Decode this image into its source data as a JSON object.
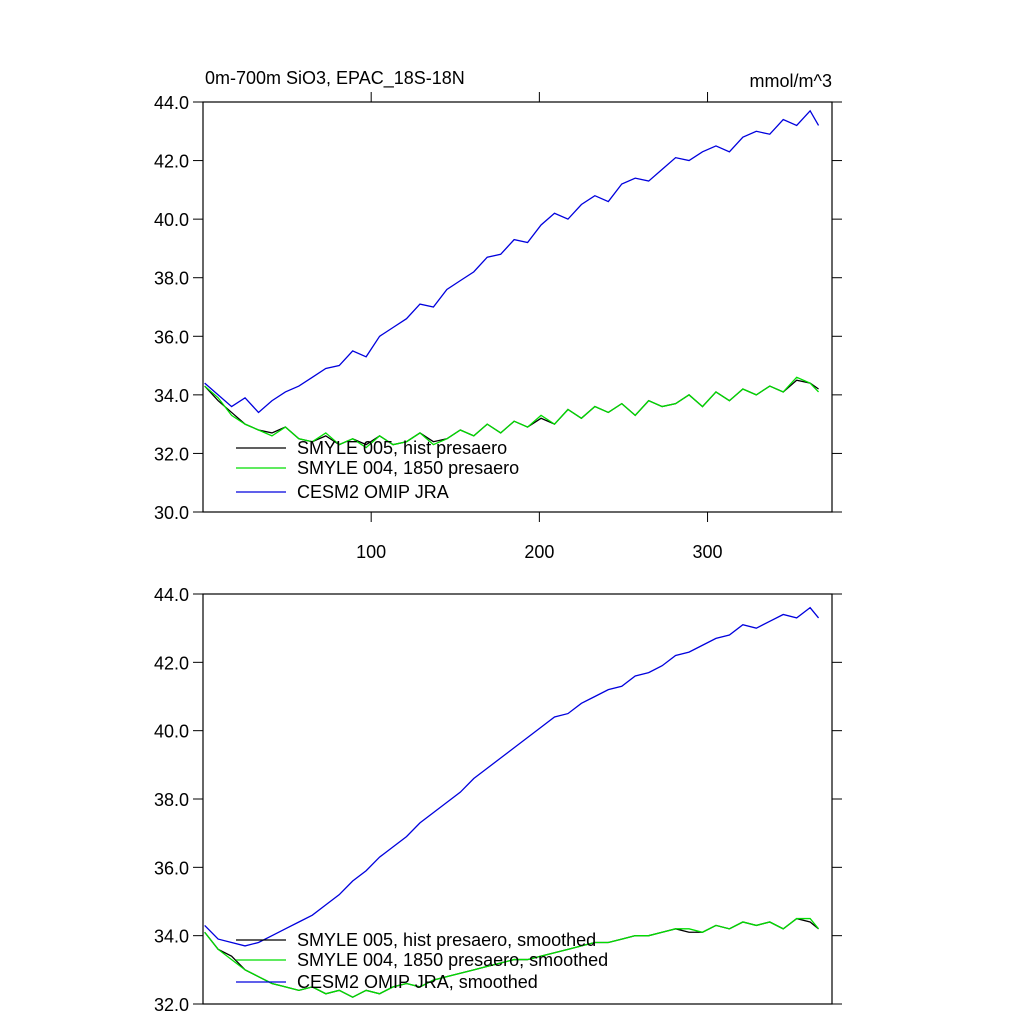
{
  "chart_data": [
    {
      "type": "line",
      "title": "0m-700m SiO3, EPAC_18S-18N",
      "units": "mmol/m^3",
      "x": [
        1,
        9,
        17,
        25,
        33,
        41,
        49,
        57,
        65,
        73,
        81,
        89,
        97,
        105,
        113,
        121,
        129,
        137,
        145,
        153,
        161,
        169,
        177,
        185,
        193,
        201,
        209,
        217,
        225,
        233,
        241,
        249,
        257,
        265,
        273,
        281,
        289,
        297,
        305,
        313,
        321,
        329,
        337,
        345,
        353,
        361,
        366
      ],
      "xlim": [
        0,
        374
      ],
      "xticks": [
        100,
        200,
        300
      ],
      "ylim": [
        30,
        44
      ],
      "yticks": [
        {
          "value": 30,
          "label": "30.0"
        },
        {
          "value": 32,
          "label": "32.0"
        },
        {
          "value": 34,
          "label": "34.0"
        },
        {
          "value": 36,
          "label": "36.0"
        },
        {
          "value": 38,
          "label": "38.0"
        },
        {
          "value": 40,
          "label": "40.0"
        },
        {
          "value": 42,
          "label": "42.0"
        },
        {
          "value": 44,
          "label": "44.0"
        }
      ],
      "series": [
        {
          "name": "SMYLE 005, hist presaero",
          "color": "#000000",
          "values": [
            34.3,
            33.8,
            33.4,
            33.0,
            32.8,
            32.7,
            32.9,
            32.5,
            32.4,
            32.6,
            32.3,
            32.5,
            32.3,
            32.6,
            32.3,
            32.4,
            32.7,
            32.4,
            32.5,
            32.8,
            32.6,
            33.0,
            32.7,
            33.1,
            32.9,
            33.2,
            33.0,
            33.5,
            33.2,
            33.6,
            33.4,
            33.7,
            33.3,
            33.8,
            33.6,
            33.7,
            34.0,
            33.6,
            34.1,
            33.8,
            34.2,
            34.0,
            34.3,
            34.1,
            34.5,
            34.4,
            34.2
          ]
        },
        {
          "name": "SMYLE 004, 1850 presaero",
          "color": "#00dd00",
          "values": [
            34.3,
            33.9,
            33.3,
            33.0,
            32.8,
            32.6,
            32.9,
            32.5,
            32.4,
            32.7,
            32.3,
            32.5,
            32.2,
            32.6,
            32.3,
            32.4,
            32.7,
            32.3,
            32.5,
            32.8,
            32.6,
            33.0,
            32.7,
            33.1,
            32.9,
            33.3,
            33.0,
            33.5,
            33.2,
            33.6,
            33.4,
            33.7,
            33.3,
            33.8,
            33.6,
            33.7,
            34.0,
            33.6,
            34.1,
            33.8,
            34.2,
            34.0,
            34.3,
            34.1,
            34.6,
            34.4,
            34.1
          ]
        },
        {
          "name": "CESM2 OMIP JRA",
          "color": "#0000dd",
          "values": [
            34.4,
            34.0,
            33.6,
            33.9,
            33.4,
            33.8,
            34.1,
            34.3,
            34.6,
            34.9,
            35.0,
            35.5,
            35.3,
            36.0,
            36.3,
            36.6,
            37.1,
            37.0,
            37.6,
            37.9,
            38.2,
            38.7,
            38.8,
            39.3,
            39.2,
            39.8,
            40.2,
            40.0,
            40.5,
            40.8,
            40.6,
            41.2,
            41.4,
            41.3,
            41.7,
            42.1,
            42.0,
            42.3,
            42.5,
            42.3,
            42.8,
            43.0,
            42.9,
            43.4,
            43.2,
            43.7,
            43.2
          ]
        }
      ]
    },
    {
      "type": "line",
      "x": [
        1,
        9,
        17,
        25,
        33,
        41,
        49,
        57,
        65,
        73,
        81,
        89,
        97,
        105,
        113,
        121,
        129,
        137,
        145,
        153,
        161,
        169,
        177,
        185,
        193,
        201,
        209,
        217,
        225,
        233,
        241,
        249,
        257,
        265,
        273,
        281,
        289,
        297,
        305,
        313,
        321,
        329,
        337,
        345,
        353,
        361,
        366
      ],
      "xlim": [
        0,
        374
      ],
      "ylim": [
        32,
        44
      ],
      "yticks": [
        {
          "value": 32,
          "label": "32.0"
        },
        {
          "value": 34,
          "label": "34.0"
        },
        {
          "value": 36,
          "label": "36.0"
        },
        {
          "value": 38,
          "label": "38.0"
        },
        {
          "value": 40,
          "label": "40.0"
        },
        {
          "value": 42,
          "label": "42.0"
        },
        {
          "value": 44,
          "label": "44.0"
        }
      ],
      "series": [
        {
          "name": "SMYLE 005, hist presaero, smoothed",
          "color": "#000000",
          "values": [
            34.1,
            33.6,
            33.4,
            33.0,
            32.8,
            32.6,
            32.5,
            32.4,
            32.5,
            32.3,
            32.4,
            32.2,
            32.4,
            32.3,
            32.5,
            32.6,
            32.5,
            32.7,
            32.8,
            32.9,
            33.0,
            33.1,
            33.2,
            33.3,
            33.3,
            33.4,
            33.5,
            33.6,
            33.7,
            33.8,
            33.8,
            33.9,
            34.0,
            34.0,
            34.1,
            34.2,
            34.1,
            34.1,
            34.3,
            34.2,
            34.4,
            34.3,
            34.4,
            34.2,
            34.5,
            34.4,
            34.2
          ]
        },
        {
          "name": "SMYLE 004, 1850 presaero, smoothed",
          "color": "#00dd00",
          "values": [
            34.1,
            33.6,
            33.3,
            33.0,
            32.8,
            32.6,
            32.5,
            32.4,
            32.5,
            32.3,
            32.4,
            32.2,
            32.4,
            32.3,
            32.5,
            32.6,
            32.5,
            32.7,
            32.8,
            32.9,
            33.0,
            33.1,
            33.2,
            33.3,
            33.3,
            33.4,
            33.5,
            33.6,
            33.7,
            33.8,
            33.8,
            33.9,
            34.0,
            34.0,
            34.1,
            34.2,
            34.2,
            34.1,
            34.3,
            34.2,
            34.4,
            34.3,
            34.4,
            34.2,
            34.5,
            34.5,
            34.2
          ]
        },
        {
          "name": "CESM2 OMIP JRA, smoothed",
          "color": "#0000dd",
          "values": [
            34.3,
            33.9,
            33.8,
            33.7,
            33.8,
            34.0,
            34.2,
            34.4,
            34.6,
            34.9,
            35.2,
            35.6,
            35.9,
            36.3,
            36.6,
            36.9,
            37.3,
            37.6,
            37.9,
            38.2,
            38.6,
            38.9,
            39.2,
            39.5,
            39.8,
            40.1,
            40.4,
            40.5,
            40.8,
            41.0,
            41.2,
            41.3,
            41.6,
            41.7,
            41.9,
            42.2,
            42.3,
            42.5,
            42.7,
            42.8,
            43.1,
            43.0,
            43.2,
            43.4,
            43.3,
            43.6,
            43.3
          ]
        }
      ]
    }
  ]
}
